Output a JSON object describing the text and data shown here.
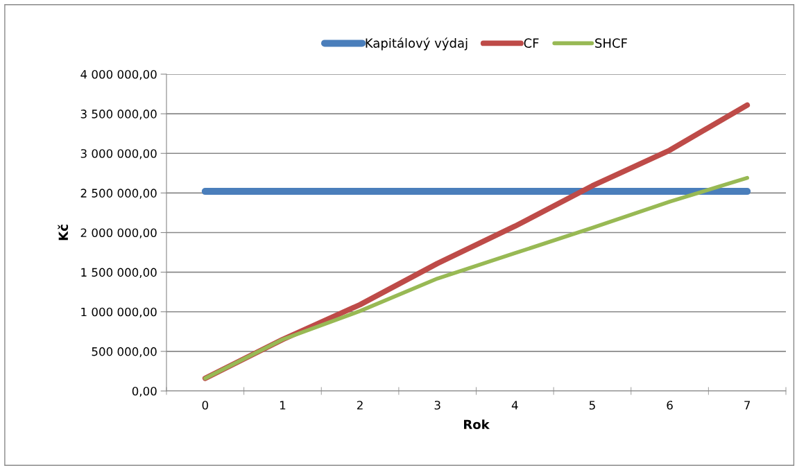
{
  "chart_data": {
    "type": "line",
    "xlabel": "Rok",
    "ylabel": "Kč",
    "categories": [
      "0",
      "1",
      "2",
      "3",
      "4",
      "5",
      "6",
      "7"
    ],
    "series": [
      {
        "name": "Kapitálový výdaj",
        "color": "#4a7ebb",
        "values": [
          2520000,
          2520000,
          2520000,
          2520000,
          2520000,
          2520000,
          2520000,
          2520000
        ]
      },
      {
        "name": "CF",
        "color": "#be4b48",
        "values": [
          160000,
          650000,
          1090000,
          1610000,
          2080000,
          2590000,
          3040000,
          3610000
        ]
      },
      {
        "name": "SHCF",
        "color": "#98b954",
        "values": [
          160000,
          650000,
          1010000,
          1420000,
          1740000,
          2060000,
          2390000,
          2690000
        ]
      }
    ],
    "ylim": [
      0,
      4000000
    ],
    "yticks": [
      {
        "value": 0,
        "label": "0,00"
      },
      {
        "value": 500000,
        "label": "500 000,00"
      },
      {
        "value": 1000000,
        "label": "1 000 000,00"
      },
      {
        "value": 1500000,
        "label": "1 500 000,00"
      },
      {
        "value": 2000000,
        "label": "2 000 000,00"
      },
      {
        "value": 2500000,
        "label": "2 500 000,00"
      },
      {
        "value": 3000000,
        "label": "3 000 000,00"
      },
      {
        "value": 3500000,
        "label": "3 500 000,00"
      },
      {
        "value": 4000000,
        "label": "4 000 000,00"
      }
    ],
    "grid": "y",
    "legend": "top",
    "marker": "none",
    "line_style": "solid"
  }
}
